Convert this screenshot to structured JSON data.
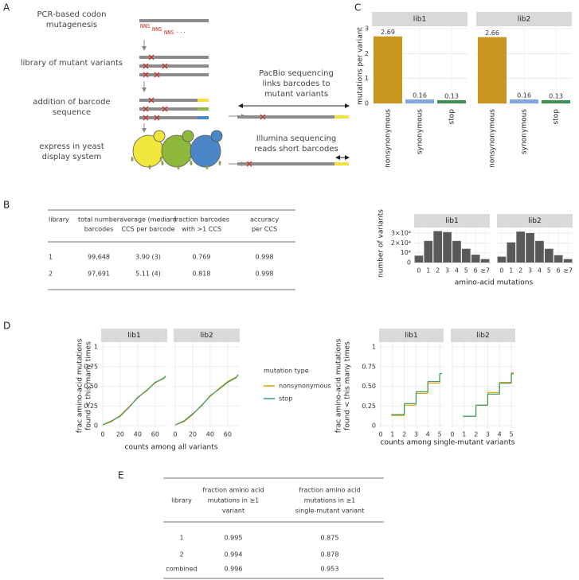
{
  "panels": [
    "A",
    "B",
    "C",
    "D",
    "E"
  ],
  "diagram": {
    "steps": [
      [
        "PCR-based codon",
        "mutagenesis"
      ],
      [
        "library of mutant variants"
      ],
      [
        "addition of barcode",
        "sequence"
      ],
      [
        "express in yeast",
        "display system"
      ]
    ],
    "codons": [
      "NNS",
      "NNS",
      "NNS",
      "..."
    ],
    "pacbio": [
      "PacBio sequencing",
      "links barcodes to",
      "mutant variants"
    ],
    "illumina": [
      "Illumina sequencing",
      "reads short barcodes"
    ]
  },
  "table_b": {
    "headers": [
      [
        "library"
      ],
      [
        "total number",
        "barcodes"
      ],
      [
        "average (median)",
        "CCS per barcode"
      ],
      [
        "fraction barcodes",
        "with >1 CCS"
      ],
      [
        "accuracy",
        "per CCS"
      ]
    ],
    "rows": [
      [
        "1",
        "99,648",
        "3.90 (3)",
        "0.769",
        "0.998"
      ],
      [
        "2",
        "97,691",
        "5.11 (4)",
        "0.818",
        "0.998"
      ]
    ]
  },
  "table_e": {
    "headers": [
      [
        "library"
      ],
      [
        "fraction amino acid",
        "mutations in ≥1",
        "variant"
      ],
      [
        "fraction amino acid",
        "mutations in ≥1",
        "single-mutant variant"
      ]
    ],
    "rows": [
      [
        "1",
        "0.995",
        "0.875"
      ],
      [
        "2",
        "0.994",
        "0.878"
      ],
      [
        "combined",
        "0.996",
        "0.953"
      ]
    ]
  },
  "chart_data": [
    {
      "type": "bar",
      "facets": [
        "lib1",
        "lib2"
      ],
      "categories": [
        "nonsynonymous",
        "synonymous",
        "stop"
      ],
      "colors": [
        "#c8951f",
        "#84a7dc",
        "#3f8f55"
      ],
      "values": [
        [
          2.69,
          0.16,
          0.13
        ],
        [
          2.66,
          0.16,
          0.13
        ]
      ],
      "ylabel": "mutations per variant",
      "ylim": [
        0,
        3
      ],
      "yticks": [
        0,
        1,
        2,
        3
      ],
      "grid": true
    },
    {
      "type": "bar",
      "facets": [
        "lib1",
        "lib2"
      ],
      "categories": [
        "0",
        "1",
        "2",
        "3",
        "4",
        "5",
        "6",
        "≥7"
      ],
      "color": "#595959",
      "values": [
        [
          7000,
          22000,
          32000,
          31000,
          22000,
          14000,
          8000,
          3500
        ],
        [
          6000,
          20500,
          31500,
          30000,
          22000,
          14000,
          7500,
          3500
        ]
      ],
      "xlabel": "amino-acid mutations",
      "ylabel": "number of variants",
      "ylim": [
        0,
        34000
      ],
      "yticks": [
        0,
        {
          "value": 10000,
          "label": "10⁴"
        },
        {
          "value": 20000,
          "label": "2×10⁴"
        },
        {
          "value": 30000,
          "label": "3×10⁴"
        }
      ],
      "grid": true
    },
    {
      "type": "line",
      "facets": [
        "lib1",
        "lib2"
      ],
      "x": [
        0,
        10,
        20,
        30,
        40,
        50,
        60,
        70,
        72
      ],
      "series": [
        {
          "name": "nonsynonymous",
          "color": "#e69f00",
          "values": [
            [
              0.01,
              0.05,
              0.13,
              0.24,
              0.35,
              0.45,
              0.54,
              0.61,
              0.63
            ],
            [
              0.01,
              0.05,
              0.14,
              0.26,
              0.37,
              0.47,
              0.56,
              0.62,
              0.64
            ]
          ]
        },
        {
          "name": "stop",
          "color": "#3a9a6a",
          "values": [
            [
              0.01,
              0.06,
              0.12,
              0.23,
              0.36,
              0.44,
              0.55,
              0.6,
              0.63
            ],
            [
              0.01,
              0.06,
              0.15,
              0.25,
              0.38,
              0.46,
              0.55,
              0.61,
              0.65
            ]
          ]
        }
      ],
      "legend_title": "mutation type",
      "xlabel": "counts among all variants",
      "ylabel": [
        "frac amino-acid mutations",
        "found < this many times"
      ],
      "xlim": [
        0,
        72
      ],
      "xticks": [
        0,
        20,
        40,
        60
      ],
      "ylim": [
        0,
        1
      ],
      "yticks": [
        0,
        0.25,
        {
          "value": 0.5,
          "label": "0.50"
        },
        0.75,
        1
      ],
      "grid": true
    },
    {
      "type": "step",
      "facets": [
        "lib1",
        "lib2"
      ],
      "x": [
        1,
        2,
        3,
        4,
        5
      ],
      "series": [
        {
          "color": "#e69f00",
          "values": [
            [
              0.13,
              0.26,
              0.41,
              0.54,
              0.66
            ],
            [
              0.12,
              0.26,
              0.42,
              0.55,
              0.67
            ]
          ]
        },
        {
          "color": "#3a9a6a",
          "values": [
            [
              0.14,
              0.28,
              0.43,
              0.56,
              0.66
            ],
            [
              0.12,
              0.26,
              0.4,
              0.54,
              0.66
            ]
          ]
        }
      ],
      "xlabel": "counts among single-mutant variants",
      "ylabel": [
        "frac amino-acid mutations",
        "found < this many times"
      ],
      "xlim": [
        0,
        5.2
      ],
      "xticks": [
        0,
        1,
        2,
        3,
        4,
        5
      ],
      "ylim": [
        0,
        1
      ],
      "yticks": [
        0,
        0.25,
        {
          "value": 0.5,
          "label": "0.50"
        },
        0.75,
        1
      ],
      "grid": true
    }
  ]
}
